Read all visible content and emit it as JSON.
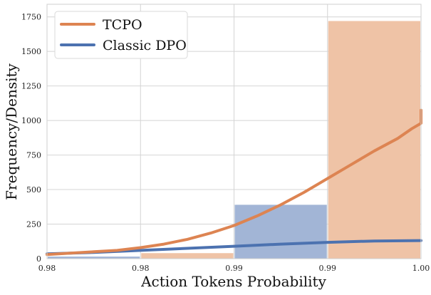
{
  "chart_data": {
    "type": "bar",
    "xlabel": "Action Tokens Probability",
    "ylabel": "Frequency/Density",
    "x_tick_labels": [
      "0.98",
      "0.98",
      "0.99",
      "0.99",
      "1.00"
    ],
    "y_ticks": [
      0,
      250,
      500,
      750,
      1000,
      1250,
      1500,
      1750
    ],
    "ylim": [
      0,
      1800
    ],
    "grid": true,
    "legend_position": "top-left",
    "bins": [
      {
        "bin": 1,
        "tcpo": 0,
        "classic_dpo": 15
      },
      {
        "bin": 2,
        "tcpo": 40,
        "classic_dpo": 0
      },
      {
        "bin": 3,
        "tcpo": 0,
        "classic_dpo": 390
      },
      {
        "bin": 4,
        "tcpo": 1720,
        "classic_dpo": 0
      }
    ],
    "series": [
      {
        "name": "TCPO",
        "color": "#dd8452",
        "bar_color": "#efc3a6",
        "curve_x": [
          0,
          0.25,
          0.5,
          0.75,
          1,
          1.25,
          1.5,
          1.75,
          2,
          2.25,
          2.5,
          2.75,
          3,
          3.25,
          3.5,
          3.75,
          4
        ],
        "curve_y": [
          30,
          40,
          50,
          60,
          80,
          105,
          140,
          185,
          240,
          310,
          390,
          480,
          580,
          680,
          780,
          870,
          950
        ]
      },
      {
        "name": "Classic DPO",
        "color": "#4c72b0",
        "bar_color": "#a2b5d6",
        "curve_x": [
          0,
          0.5,
          1,
          1.5,
          2,
          2.5,
          3,
          3.5,
          4
        ],
        "curve_y": [
          35,
          45,
          60,
          75,
          90,
          105,
          118,
          128,
          131
        ]
      }
    ],
    "curve_tail": {
      "TCPO": [
        [
          3.9,
          940
        ],
        [
          4.0,
          980
        ],
        [
          4.1,
          1020
        ],
        [
          4.25,
          1045
        ],
        [
          4.4,
          1065
        ],
        [
          4.5,
          1075
        ]
      ]
    }
  }
}
